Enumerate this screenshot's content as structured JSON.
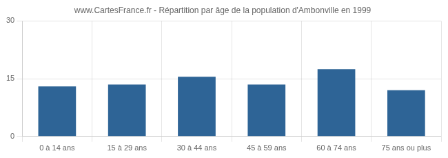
{
  "chart_data": {
    "type": "bar",
    "title": "www.CartesFrance.fr - Répartition par âge de la population d'Ambonville en 1999",
    "categories": [
      "0 à 14 ans",
      "15 à 29 ans",
      "30 à 44 ans",
      "45 à 59 ans",
      "60 à 74 ans",
      "75 ans ou plus"
    ],
    "values": [
      13,
      13.5,
      15.5,
      13.5,
      17.5,
      12
    ],
    "color": "#2e6496",
    "ylim": [
      0,
      30
    ],
    "yticks": [
      0,
      15,
      30
    ],
    "grid": true
  }
}
